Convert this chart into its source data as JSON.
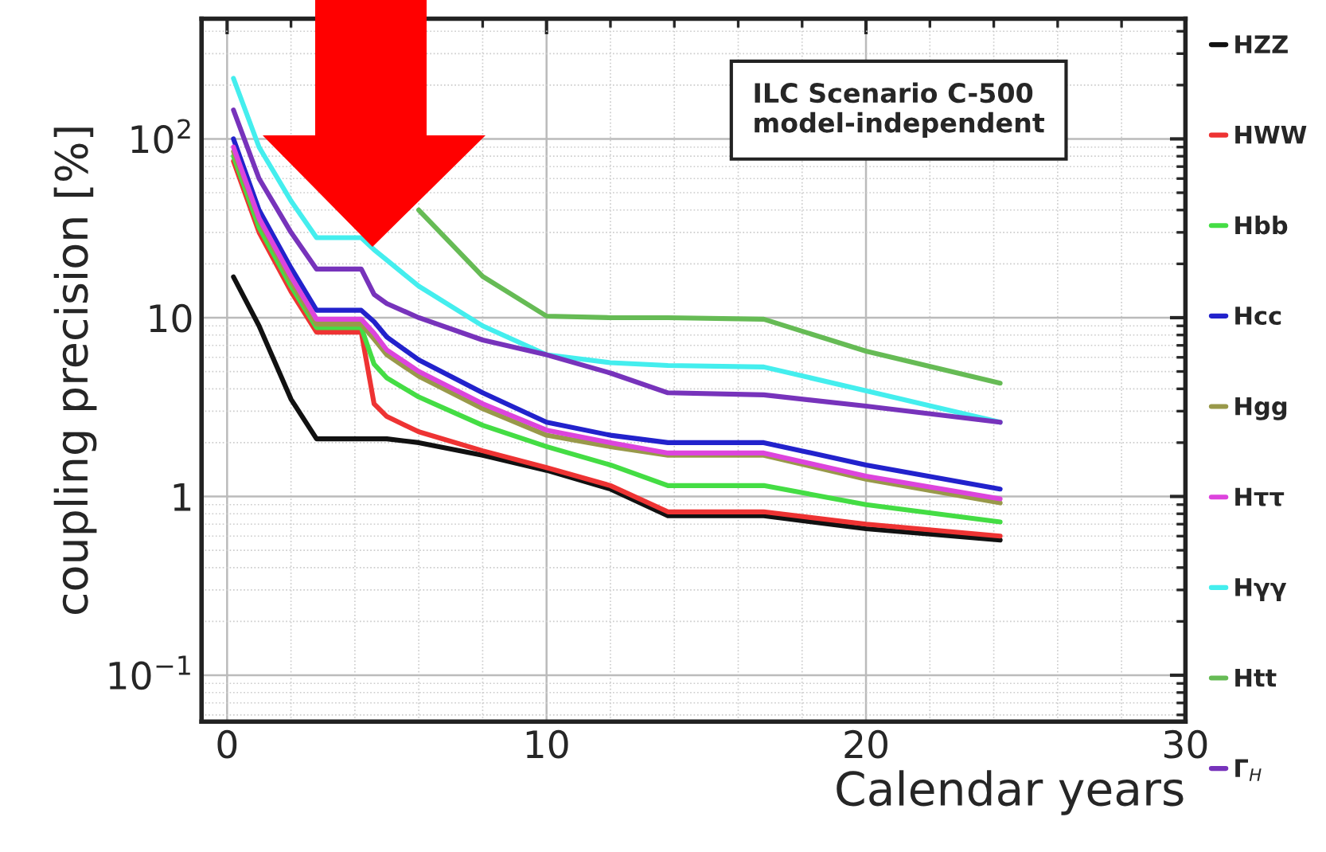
{
  "chart_data": {
    "type": "line",
    "xlabel": "Calendar years",
    "ylabel": "coupling precision [%]",
    "annotations": [
      "ILC Scenario C-500\nmodel-independent"
    ],
    "log": "y",
    "grid": true,
    "legend": "right",
    "marker": "none",
    "line_style": "solid",
    "xlim": [
      -0.8,
      30
    ],
    "xticks": [
      0,
      10,
      20,
      30
    ],
    "ylim": [
      0.055,
      470
    ],
    "yticks": [
      {
        "value": 0.1,
        "label": "10$^{−1}$"
      },
      1,
      10,
      {
        "value": 100,
        "label": "10$^{2}$"
      }
    ],
    "x": [
      0.2,
      1,
      2,
      2.8,
      4.2,
      4.6,
      5,
      6,
      8,
      10,
      12,
      13.8,
      16.8,
      20,
      24.2
    ],
    "series": [
      {
        "name": "HZZ",
        "color": "#111111",
        "values": [
          16.9,
          9,
          3.5,
          2.1,
          2.1,
          2.1,
          2.1,
          2.0,
          1.7,
          1.4,
          1.1,
          0.78,
          0.78,
          0.66,
          0.57
        ]
      },
      {
        "name": "HWW",
        "color": "#ee3333",
        "values": [
          75,
          30,
          14,
          8.3,
          8.3,
          3.3,
          2.8,
          2.3,
          1.8,
          1.45,
          1.15,
          0.82,
          0.82,
          0.7,
          0.6
        ]
      },
      {
        "name": "Hbb",
        "color": "#44dd44",
        "values": [
          80,
          32,
          15,
          8.8,
          8.8,
          5.5,
          4.6,
          3.6,
          2.5,
          1.9,
          1.5,
          1.15,
          1.15,
          0.9,
          0.72
        ]
      },
      {
        "name": "Hcc",
        "color": "#2222cc",
        "values": [
          100,
          40,
          19,
          11,
          11,
          9.5,
          7.8,
          5.8,
          3.8,
          2.6,
          2.2,
          2.0,
          2.0,
          1.5,
          1.1
        ]
      },
      {
        "name": "Hgg",
        "color": "#99994a",
        "values": [
          85,
          35,
          16,
          9.2,
          9.2,
          7.6,
          6.2,
          4.7,
          3.1,
          2.2,
          1.9,
          1.7,
          1.7,
          1.25,
          0.92
        ]
      },
      {
        "name": "Hττ",
        "color": "#dd44dd",
        "values": [
          90,
          36,
          17,
          9.8,
          9.8,
          8.2,
          6.6,
          5.0,
          3.3,
          2.35,
          2.0,
          1.75,
          1.75,
          1.3,
          0.97
        ]
      },
      {
        "name": "Hγγ",
        "color": "#44eeee",
        "values": [
          218,
          90,
          45,
          28,
          28,
          24,
          21,
          15,
          9,
          6.2,
          5.6,
          5.4,
          5.3,
          3.9,
          2.6
        ]
      },
      {
        "name": "Htt",
        "color": "#66bb55",
        "values": [
          null,
          null,
          null,
          null,
          null,
          null,
          null,
          40,
          17,
          10.2,
          10,
          10,
          9.8,
          6.5,
          4.3
        ]
      },
      {
        "name": "Γ$_{H}$",
        "color": "#7733bb",
        "values": [
          145,
          60,
          30,
          18.7,
          18.7,
          13.5,
          12,
          10,
          7.5,
          6.2,
          4.9,
          3.8,
          3.7,
          3.2,
          2.6
        ]
      }
    ]
  }
}
